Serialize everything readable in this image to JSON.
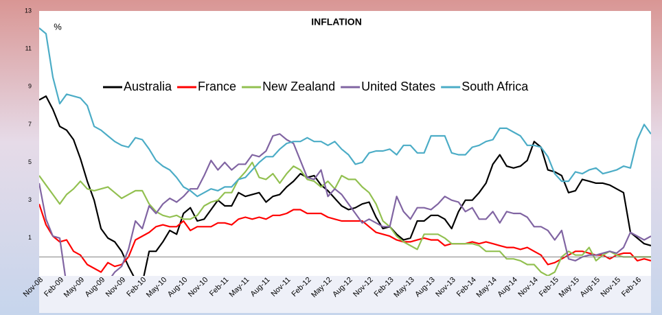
{
  "chart_data": {
    "type": "line",
    "title": "INFLATION",
    "y_label": "%",
    "categories": [
      "Nov-08",
      null,
      null,
      "Feb-09",
      null,
      null,
      "May-09",
      null,
      null,
      "Aug-09",
      null,
      null,
      "Nov-09",
      null,
      null,
      "Feb-10",
      null,
      null,
      "May-10",
      null,
      null,
      "Aug-10",
      null,
      null,
      "Nov-10",
      null,
      null,
      "Feb-11",
      null,
      null,
      "May-11",
      null,
      null,
      "Aug-11",
      null,
      null,
      "Nov-11",
      null,
      null,
      "Feb-12",
      null,
      null,
      "May-12",
      null,
      null,
      "Aug-12",
      null,
      null,
      "Nov-12",
      null,
      null,
      "Feb-13",
      null,
      null,
      "May-13",
      null,
      null,
      "Aug-13",
      null,
      null,
      "Nov-13",
      null,
      null,
      "Feb-14",
      null,
      null,
      "May-14",
      null,
      null,
      "Aug-14",
      null,
      null,
      "Nov-14",
      null,
      null,
      "Feb-15",
      null,
      null,
      "May-15",
      null,
      null,
      "Aug-15",
      null,
      null,
      "Nov-15",
      null,
      null,
      "Feb-16",
      null,
      null
    ],
    "series": [
      {
        "name": "Australia",
        "color": "#000000",
        "values": [
          8.3,
          8.5,
          7.8,
          6.9,
          6.7,
          6.2,
          5.2,
          4.0,
          3.0,
          1.5,
          1.0,
          0.8,
          0.3,
          -0.5,
          -1.2,
          -1.4,
          0.3,
          0.3,
          0.8,
          1.4,
          1.2,
          2.3,
          2.6,
          1.9,
          2.0,
          2.5,
          3.0,
          2.7,
          2.7,
          3.4,
          3.2,
          3.3,
          3.4,
          2.9,
          3.2,
          3.3,
          3.7,
          4.0,
          4.4,
          4.2,
          4.3,
          3.8,
          3.5,
          3.1,
          2.7,
          2.5,
          2.6,
          2.8,
          2.9,
          2.1,
          1.5,
          1.6,
          1.2,
          0.9,
          1.0,
          1.9,
          1.9,
          2.2,
          2.2,
          2.0,
          1.5,
          2.4,
          3.0,
          3.0,
          3.4,
          3.9,
          4.9,
          5.4,
          4.8,
          4.7,
          4.8,
          5.1,
          6.1,
          5.8,
          4.6,
          4.5,
          4.3,
          3.4,
          3.5,
          4.1,
          4.0,
          3.9,
          3.9,
          3.8,
          3.6,
          3.4,
          1.3,
          1.0,
          0.7,
          0.6
        ]
      },
      {
        "name": "France",
        "color": "#ff0000",
        "values": [
          2.8,
          1.7,
          1.1,
          0.8,
          0.9,
          0.3,
          0.1,
          -0.4,
          -0.6,
          -0.8,
          -0.3,
          -0.5,
          -0.4,
          0.0,
          0.9,
          1.1,
          1.3,
          1.6,
          1.7,
          1.6,
          1.6,
          1.9,
          1.4,
          1.6,
          1.6,
          1.6,
          1.8,
          1.8,
          1.7,
          2.0,
          2.1,
          2.0,
          2.1,
          2.0,
          2.2,
          2.2,
          2.3,
          2.5,
          2.5,
          2.3,
          2.3,
          2.3,
          2.1,
          2.0,
          1.9,
          1.9,
          1.9,
          1.9,
          1.6,
          1.3,
          1.2,
          1.1,
          0.9,
          0.8,
          0.8,
          0.9,
          1.0,
          0.9,
          0.9,
          0.6,
          0.7,
          0.7,
          0.7,
          0.8,
          0.7,
          0.8,
          0.7,
          0.6,
          0.5,
          0.5,
          0.4,
          0.5,
          0.3,
          0.1,
          -0.4,
          -0.3,
          -0.1,
          0.1,
          0.3,
          0.3,
          0.2,
          0.1,
          0.1,
          -0.1,
          0.1,
          0.2,
          0.2,
          -0.2,
          -0.1,
          -0.2
        ]
      },
      {
        "name": "New Zealand",
        "color": "#92c050",
        "values": [
          4.3,
          3.8,
          3.3,
          2.8,
          3.3,
          3.6,
          4.0,
          3.6,
          3.5,
          3.6,
          3.7,
          3.4,
          3.1,
          3.3,
          3.5,
          3.5,
          2.8,
          2.4,
          2.2,
          2.1,
          2.2,
          2.0,
          2.0,
          2.2,
          2.7,
          2.9,
          3.0,
          3.4,
          3.4,
          4.1,
          4.5,
          5.0,
          4.2,
          4.1,
          4.4,
          3.9,
          4.4,
          4.8,
          4.6,
          4.1,
          4.0,
          3.7,
          4.0,
          3.6,
          4.3,
          4.1,
          4.1,
          3.7,
          3.4,
          2.8,
          1.9,
          1.6,
          1.1,
          0.8,
          0.6,
          0.4,
          1.2,
          1.2,
          1.2,
          1.0,
          0.7,
          0.7,
          0.7,
          0.7,
          0.6,
          0.3,
          0.3,
          0.3,
          -0.1,
          -0.1,
          -0.2,
          -0.4,
          -0.4,
          -0.8,
          -1.0,
          -0.8,
          0.0,
          0.3,
          0.1,
          0.1,
          0.5,
          -0.2,
          0.1,
          0.3,
          0.1,
          0.0,
          0.0,
          0.0,
          0.0,
          0.0
        ]
      },
      {
        "name": "United States",
        "color": "#8064a2",
        "values": [
          3.9,
          2.0,
          1.1,
          1.0,
          -1.5,
          -1.8,
          -2.0,
          -2.4,
          -2.1,
          -1.5,
          -1.3,
          -0.8,
          -0.5,
          0.4,
          1.9,
          1.5,
          2.7,
          2.3,
          2.8,
          3.1,
          2.9,
          3.2,
          3.6,
          3.6,
          4.3,
          5.1,
          4.6,
          5.0,
          4.6,
          4.9,
          4.9,
          5.4,
          5.3,
          5.6,
          6.4,
          6.5,
          6.2,
          6.0,
          5.1,
          4.2,
          4.1,
          4.6,
          3.2,
          3.6,
          3.3,
          2.8,
          2.3,
          1.8,
          2.0,
          1.8,
          1.6,
          1.6,
          3.2,
          2.4,
          2.0,
          2.6,
          2.6,
          2.5,
          2.8,
          3.2,
          3.0,
          2.9,
          2.4,
          2.6,
          2.0,
          2.0,
          2.4,
          1.8,
          2.4,
          2.3,
          2.3,
          2.1,
          1.6,
          1.6,
          1.4,
          0.9,
          1.4,
          -0.1,
          -0.2,
          0.0,
          0.1,
          0.1,
          0.2,
          0.3,
          0.2,
          0.5,
          1.3,
          1.1,
          0.9,
          1.1
        ]
      },
      {
        "name": "South Africa",
        "color": "#4bacc6",
        "values": [
          12.1,
          11.8,
          9.5,
          8.1,
          8.6,
          8.5,
          8.4,
          8.0,
          6.9,
          6.7,
          6.4,
          6.1,
          5.9,
          5.8,
          6.3,
          6.2,
          5.7,
          5.1,
          4.8,
          4.6,
          4.2,
          3.7,
          3.5,
          3.2,
          3.4,
          3.6,
          3.5,
          3.7,
          3.7,
          4.1,
          4.2,
          4.6,
          5.0,
          5.3,
          5.3,
          5.7,
          6.0,
          6.1,
          6.1,
          6.3,
          6.1,
          6.1,
          5.9,
          6.1,
          5.7,
          5.4,
          4.9,
          5.0,
          5.5,
          5.6,
          5.6,
          5.7,
          5.4,
          5.9,
          5.9,
          5.5,
          5.5,
          6.4,
          6.4,
          6.4,
          5.5,
          5.4,
          5.4,
          5.8,
          5.9,
          6.1,
          6.2,
          6.8,
          6.8,
          6.6,
          6.4,
          5.9,
          5.9,
          5.8,
          5.3,
          4.4,
          4.0,
          4.0,
          4.5,
          4.4,
          4.6,
          4.7,
          4.4,
          4.5,
          4.6,
          4.8,
          4.7,
          6.2,
          7.0,
          6.5
        ]
      }
    ],
    "ylim": [
      -1,
      13
    ],
    "yticks": [
      1,
      3,
      5,
      7,
      9,
      11,
      13
    ],
    "grid": false
  }
}
